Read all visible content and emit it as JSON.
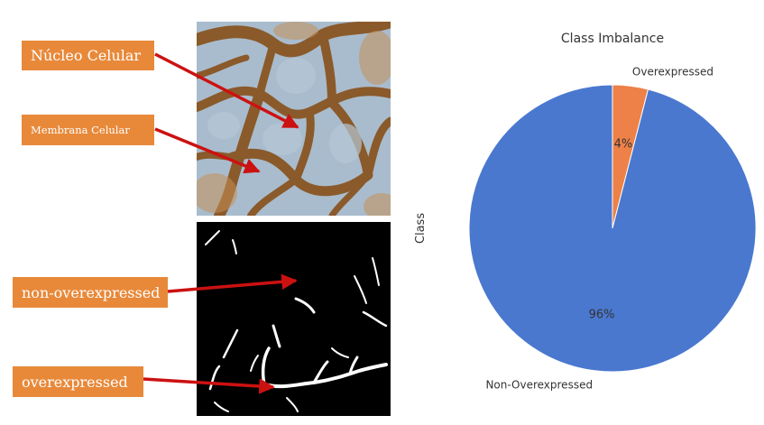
{
  "figure": {
    "labels": {
      "nucleus": "Núcleo Celular",
      "membrane": "Membrana Celular",
      "non_overexpressed": "non-overexpressed",
      "overexpressed": "overexpressed"
    },
    "colors": {
      "label_bg": "#e8893a",
      "arrow": "#cc1111",
      "tissue_bg": "#a9bccd",
      "membrane_stain": "#8a5a2b",
      "mask_bg": "#000000",
      "mask_fg": "#ffffff"
    }
  },
  "chart_data": {
    "type": "pie",
    "title": "Class Imbalance",
    "ylabel": "Class",
    "slices": [
      {
        "label": "Overexpressed",
        "value": 4,
        "pct_label": "4%",
        "color": "#ed8147"
      },
      {
        "label": "Non-Overexpressed",
        "value": 96,
        "pct_label": "96%",
        "color": "#4a78cf"
      }
    ]
  }
}
